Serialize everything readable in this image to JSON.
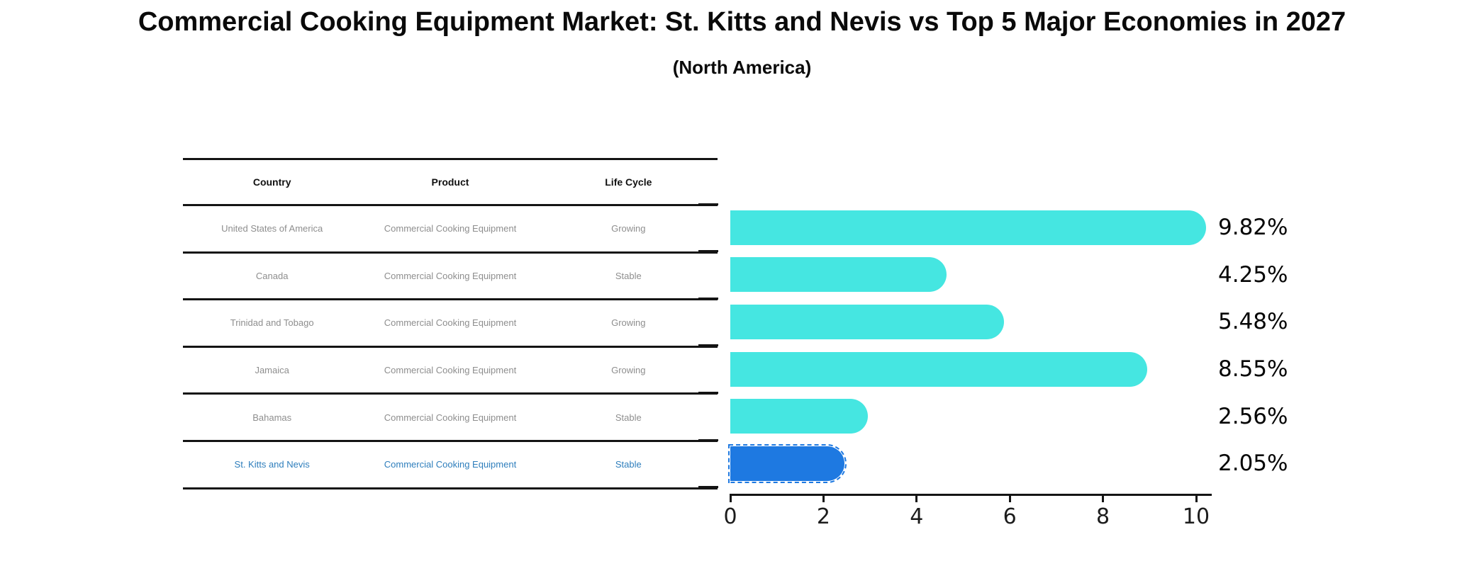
{
  "title": "Commercial Cooking Equipment Market: St. Kitts and Nevis vs Top 5 Major Economies in 2027",
  "subtitle": "(North America)",
  "table": {
    "headers": [
      "Country",
      "Product",
      "Life Cycle"
    ],
    "rows": [
      {
        "country": "United States of America",
        "product": "Commercial Cooking Equipment",
        "life_cycle": "Growing",
        "highlighted": false
      },
      {
        "country": "Canada",
        "product": "Commercial Cooking Equipment",
        "life_cycle": "Stable",
        "highlighted": false
      },
      {
        "country": "Trinidad and Tobago",
        "product": "Commercial Cooking Equipment",
        "life_cycle": "Growing",
        "highlighted": false
      },
      {
        "country": "Jamaica",
        "product": "Commercial Cooking Equipment",
        "life_cycle": "Growing",
        "highlighted": false
      },
      {
        "country": "Bahamas",
        "product": "Commercial Cooking Equipment",
        "life_cycle": "Stable",
        "highlighted": false
      },
      {
        "country": "St. Kitts and Nevis",
        "product": "Commercial Cooking Equipment",
        "life_cycle": "Stable",
        "highlighted": true
      }
    ]
  },
  "chart_data": {
    "type": "bar",
    "orientation": "horizontal",
    "title": "Commercial Cooking Equipment Market: St. Kitts and Nevis vs Top 5 Major Economies in 2027",
    "subtitle": "(North America)",
    "categories": [
      "United States of America",
      "Canada",
      "Trinidad and Tobago",
      "Jamaica",
      "Bahamas",
      "St. Kitts and Nevis"
    ],
    "values": [
      9.82,
      4.25,
      5.48,
      8.55,
      2.56,
      2.05
    ],
    "value_labels": [
      "9.82%",
      "4.25%",
      "5.48%",
      "8.55%",
      "2.56%",
      "2.05%"
    ],
    "xlabel": "",
    "ylabel": "",
    "xlim": [
      0,
      10.5
    ],
    "xticks": [
      0,
      2,
      4,
      6,
      8,
      10
    ],
    "grid": false,
    "legend": false,
    "bar_color": "#45e6e1",
    "highlight_color": "#1e79e1",
    "highlight_index": 5,
    "highlight_style": "dashed-outline"
  },
  "colors": {
    "highlight_text": "#2e7ebc",
    "cell_text": "#8e8e8e",
    "table_line": "#141414",
    "label_text": "#050505"
  }
}
